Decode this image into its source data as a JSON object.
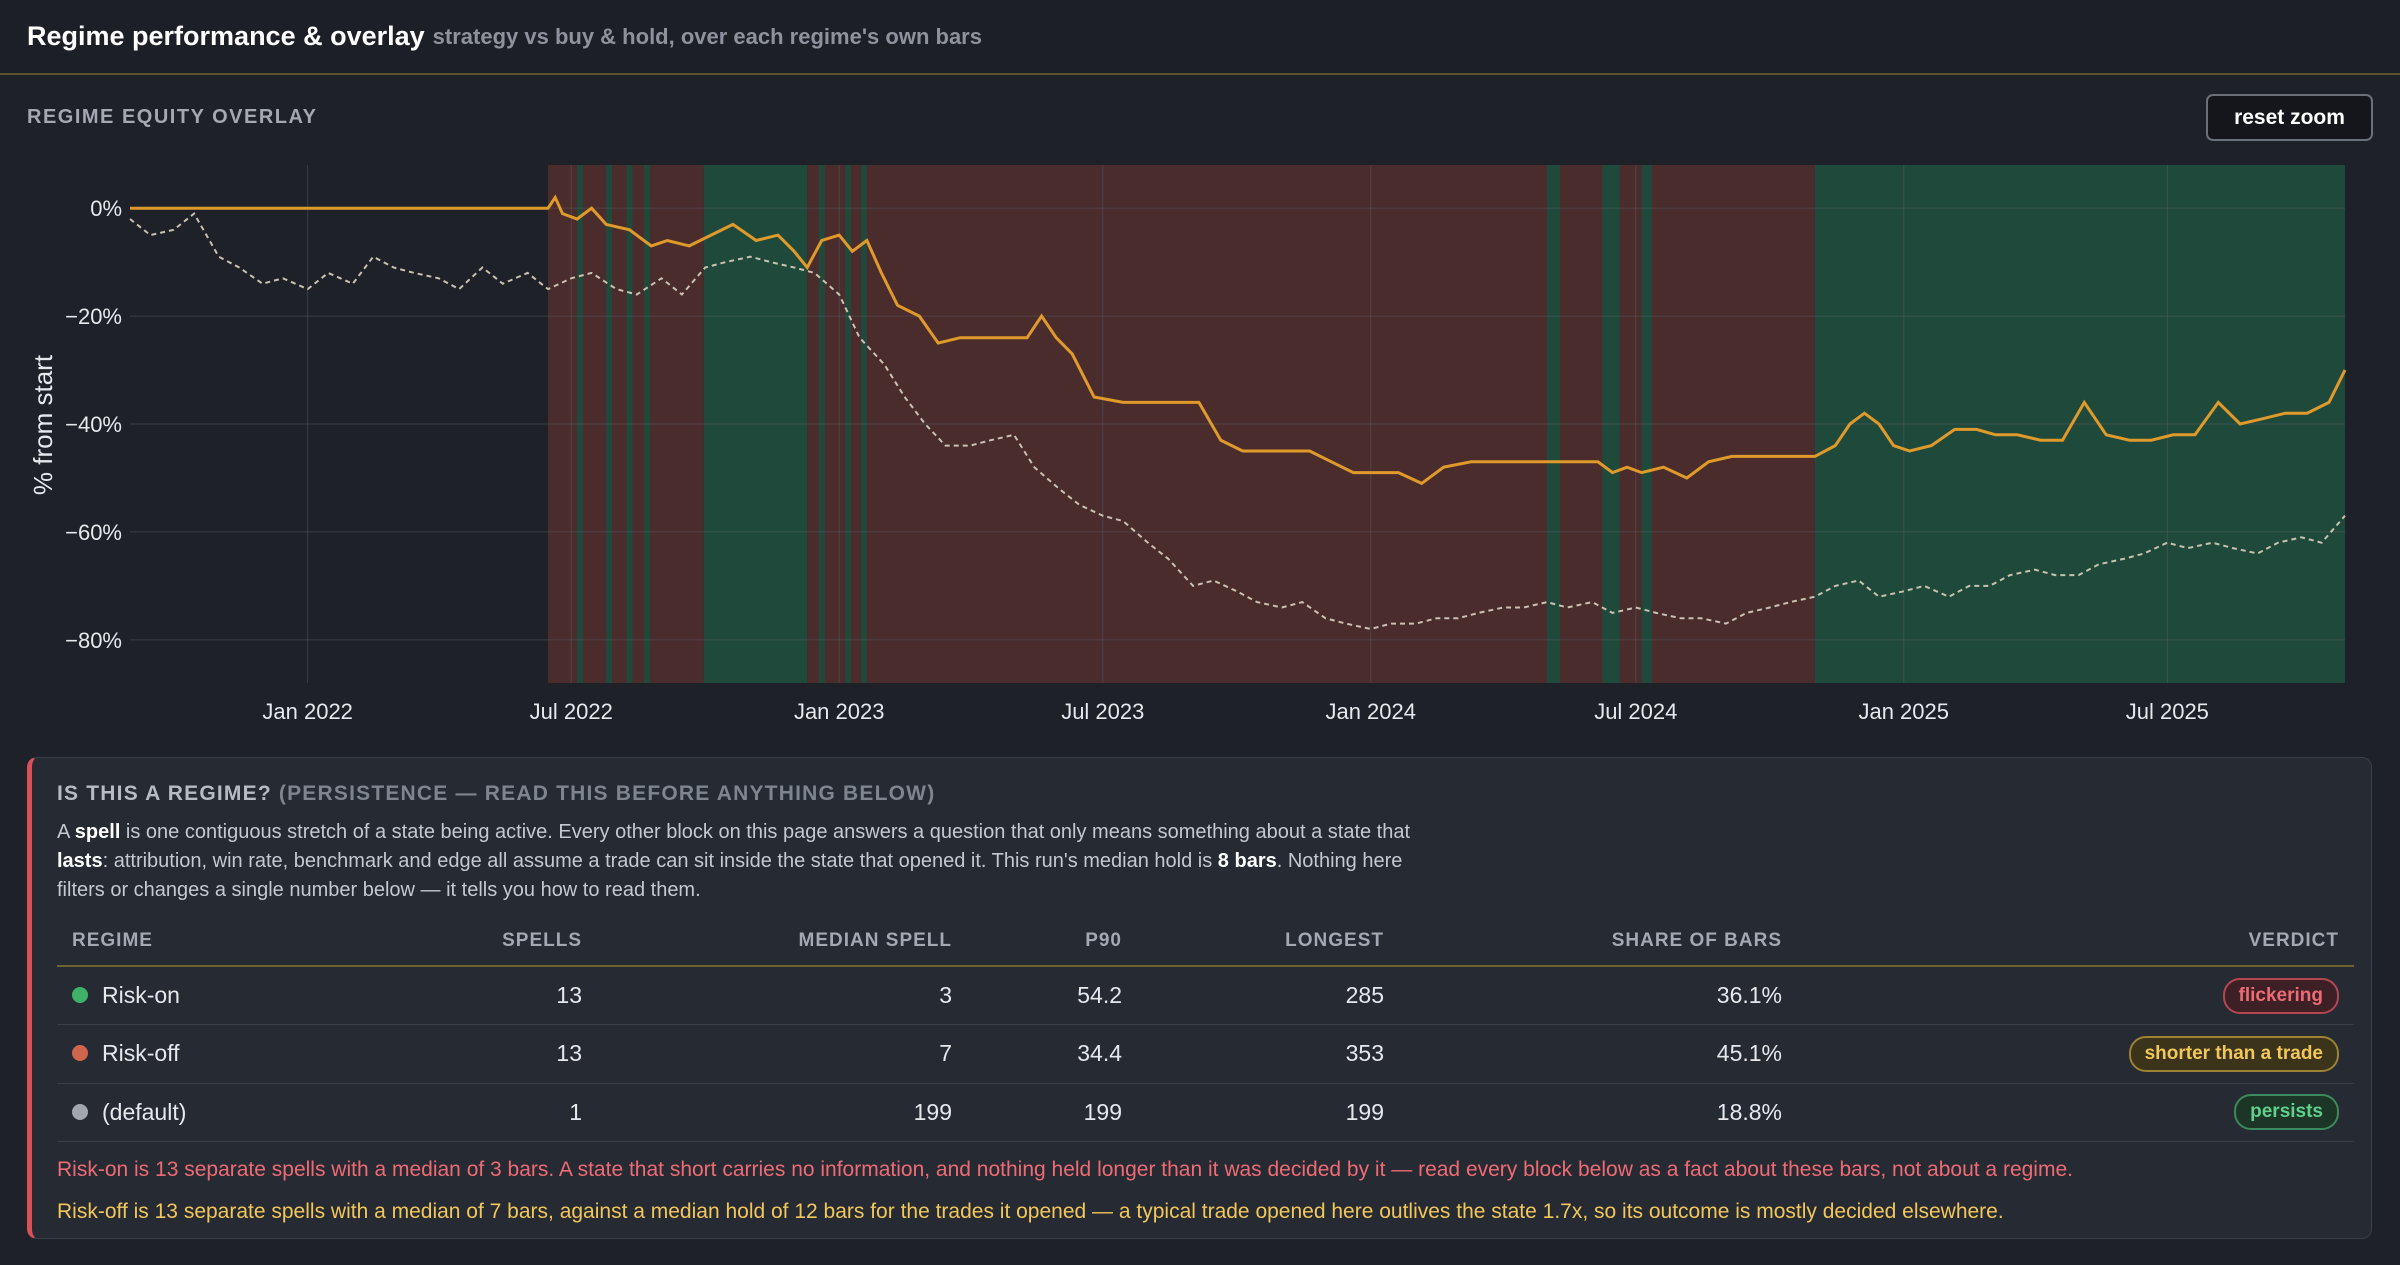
{
  "header": {
    "title": "Regime performance & overlay",
    "subtitle": "strategy vs buy & hold, over each regime's own bars"
  },
  "overlay": {
    "section_label": "REGIME EQUITY OVERLAY",
    "reset_label": "reset zoom"
  },
  "chart_data": {
    "type": "line",
    "ylabel": "% from start",
    "xlim": [
      "2021-09-01",
      "2025-10-31"
    ],
    "ylim": [
      -88,
      8
    ],
    "y_ticks": [
      {
        "value": 0,
        "label": "0%"
      },
      {
        "value": -20,
        "label": "−20%"
      },
      {
        "value": -40,
        "label": "−40%"
      },
      {
        "value": -60,
        "label": "−60%"
      },
      {
        "value": -80,
        "label": "−80%"
      }
    ],
    "x_ticks": [
      {
        "value": "2022-01-01",
        "label": "Jan 2022"
      },
      {
        "value": "2022-07-01",
        "label": "Jul 2022"
      },
      {
        "value": "2023-01-01",
        "label": "Jan 2023"
      },
      {
        "value": "2023-07-01",
        "label": "Jul 2023"
      },
      {
        "value": "2024-01-01",
        "label": "Jan 2024"
      },
      {
        "value": "2024-07-01",
        "label": "Jul 2024"
      },
      {
        "value": "2025-01-01",
        "label": "Jan 2025"
      },
      {
        "value": "2025-07-01",
        "label": "Jul 2025"
      }
    ],
    "grid": true,
    "colors": {
      "strategy": "#e09a2b",
      "buy_hold": "#c9c2b0",
      "risk_on": "#1f4a3b",
      "risk_off": "#4a2c2c"
    },
    "regime_bands": [
      {
        "regime": "Risk-off",
        "start": "2022-06-15",
        "end": "2022-09-30"
      },
      {
        "regime": "Risk-on",
        "start": "2022-07-05",
        "end": "2022-07-09"
      },
      {
        "regime": "Risk-on",
        "start": "2022-07-25",
        "end": "2022-07-29"
      },
      {
        "regime": "Risk-on",
        "start": "2022-08-08",
        "end": "2022-08-12"
      },
      {
        "regime": "Risk-on",
        "start": "2022-08-20",
        "end": "2022-08-24"
      },
      {
        "regime": "Risk-on",
        "start": "2022-09-30",
        "end": "2022-12-10"
      },
      {
        "regime": "Risk-off",
        "start": "2022-12-10",
        "end": "2024-11-01"
      },
      {
        "regime": "Risk-on",
        "start": "2022-12-18",
        "end": "2022-12-22"
      },
      {
        "regime": "Risk-on",
        "start": "2023-01-05",
        "end": "2023-01-09"
      },
      {
        "regime": "Risk-on",
        "start": "2023-01-16",
        "end": "2023-01-20"
      },
      {
        "regime": "Risk-on",
        "start": "2024-05-01",
        "end": "2024-05-10"
      },
      {
        "regime": "Risk-on",
        "start": "2024-06-08",
        "end": "2024-06-20"
      },
      {
        "regime": "Risk-on",
        "start": "2024-07-05",
        "end": "2024-07-12"
      },
      {
        "regime": "Risk-on",
        "start": "2024-11-01",
        "end": "2025-10-31"
      }
    ],
    "series": [
      {
        "key": "strategy",
        "x": [
          "2021-09-01",
          "2022-06-15",
          "2022-06-20",
          "2022-06-25",
          "2022-07-05",
          "2022-07-15",
          "2022-07-25",
          "2022-08-10",
          "2022-08-25",
          "2022-09-05",
          "2022-09-20",
          "2022-10-05",
          "2022-10-20",
          "2022-11-05",
          "2022-11-20",
          "2022-12-01",
          "2022-12-10",
          "2022-12-20",
          "2023-01-01",
          "2023-01-10",
          "2023-01-20",
          "2023-01-30",
          "2023-02-10",
          "2023-02-25",
          "2023-03-10",
          "2023-03-25",
          "2023-04-10",
          "2023-04-25",
          "2023-05-10",
          "2023-05-20",
          "2023-05-30",
          "2023-06-10",
          "2023-06-25",
          "2023-07-15",
          "2023-08-01",
          "2023-08-20",
          "2023-09-05",
          "2023-09-20",
          "2023-10-05",
          "2023-10-20",
          "2023-11-05",
          "2023-11-20",
          "2023-12-05",
          "2023-12-20",
          "2024-01-05",
          "2024-01-20",
          "2024-02-05",
          "2024-02-20",
          "2024-03-10",
          "2024-04-01",
          "2024-04-20",
          "2024-05-05",
          "2024-05-20",
          "2024-06-05",
          "2024-06-15",
          "2024-06-25",
          "2024-07-05",
          "2024-07-20",
          "2024-08-05",
          "2024-08-20",
          "2024-09-05",
          "2024-09-20",
          "2024-10-05",
          "2024-10-20",
          "2024-11-01",
          "2024-11-15",
          "2024-11-25",
          "2024-12-05",
          "2024-12-15",
          "2024-12-25",
          "2025-01-05",
          "2025-01-20",
          "2025-02-05",
          "2025-02-20",
          "2025-03-05",
          "2025-03-20",
          "2025-04-05",
          "2025-04-20",
          "2025-05-05",
          "2025-05-20",
          "2025-06-05",
          "2025-06-20",
          "2025-07-05",
          "2025-07-20",
          "2025-08-05",
          "2025-08-20",
          "2025-09-05",
          "2025-09-20",
          "2025-10-05",
          "2025-10-20",
          "2025-10-31"
        ],
        "y": [
          0,
          0,
          2,
          -1,
          -2,
          0,
          -3,
          -4,
          -7,
          -6,
          -7,
          -5,
          -3,
          -6,
          -5,
          -8,
          -11,
          -6,
          -5,
          -8,
          -6,
          -12,
          -18,
          -20,
          -25,
          -24,
          -24,
          -24,
          -24,
          -20,
          -24,
          -27,
          -35,
          -36,
          -36,
          -36,
          -36,
          -43,
          -45,
          -45,
          -45,
          -45,
          -47,
          -49,
          -49,
          -49,
          -51,
          -48,
          -47,
          -47,
          -47,
          -47,
          -47,
          -47,
          -49,
          -48,
          -49,
          -48,
          -50,
          -47,
          -46,
          -46,
          -46,
          -46,
          -46,
          -44,
          -40,
          -38,
          -40,
          -44,
          -45,
          -44,
          -41,
          -41,
          -42,
          -42,
          -43,
          -43,
          -36,
          -42,
          -43,
          -43,
          -42,
          -42,
          -36,
          -40,
          -39,
          -38,
          -38,
          -36,
          -30
        ]
      },
      {
        "key": "buy_hold",
        "x": [
          "2021-09-01",
          "2021-09-15",
          "2021-10-01",
          "2021-10-15",
          "2021-11-01",
          "2021-11-15",
          "2021-12-01",
          "2021-12-15",
          "2022-01-01",
          "2022-01-15",
          "2022-02-01",
          "2022-02-15",
          "2022-03-01",
          "2022-03-15",
          "2022-04-01",
          "2022-04-15",
          "2022-05-01",
          "2022-05-15",
          "2022-06-01",
          "2022-06-15",
          "2022-07-01",
          "2022-07-15",
          "2022-08-01",
          "2022-08-15",
          "2022-09-01",
          "2022-09-15",
          "2022-10-01",
          "2022-10-15",
          "2022-11-01",
          "2022-11-15",
          "2022-12-01",
          "2022-12-15",
          "2023-01-01",
          "2023-01-15",
          "2023-02-01",
          "2023-02-15",
          "2023-03-01",
          "2023-03-15",
          "2023-04-01",
          "2023-04-15",
          "2023-05-01",
          "2023-05-15",
          "2023-06-01",
          "2023-06-15",
          "2023-07-01",
          "2023-07-15",
          "2023-08-01",
          "2023-08-15",
          "2023-09-01",
          "2023-09-15",
          "2023-10-01",
          "2023-10-15",
          "2023-11-01",
          "2023-11-15",
          "2023-12-01",
          "2023-12-15",
          "2024-01-01",
          "2024-01-15",
          "2024-02-01",
          "2024-02-15",
          "2024-03-01",
          "2024-03-15",
          "2024-04-01",
          "2024-04-15",
          "2024-05-01",
          "2024-05-15",
          "2024-06-01",
          "2024-06-15",
          "2024-07-01",
          "2024-07-15",
          "2024-08-01",
          "2024-08-15",
          "2024-09-01",
          "2024-09-15",
          "2024-10-01",
          "2024-10-15",
          "2024-11-01",
          "2024-11-15",
          "2024-12-01",
          "2024-12-15",
          "2025-01-01",
          "2025-01-15",
          "2025-02-01",
          "2025-02-15",
          "2025-03-01",
          "2025-03-15",
          "2025-04-01",
          "2025-04-15",
          "2025-05-01",
          "2025-05-15",
          "2025-06-01",
          "2025-06-15",
          "2025-07-01",
          "2025-07-15",
          "2025-08-01",
          "2025-08-15",
          "2025-09-01",
          "2025-09-15",
          "2025-10-01",
          "2025-10-15",
          "2025-10-31"
        ],
        "y": [
          -2,
          -5,
          -4,
          -1,
          -9,
          -11,
          -14,
          -13,
          -15,
          -12,
          -14,
          -9,
          -11,
          -12,
          -13,
          -15,
          -11,
          -14,
          -12,
          -15,
          -13,
          -12,
          -15,
          -16,
          -13,
          -16,
          -11,
          -10,
          -9,
          -10,
          -11,
          -12,
          -16,
          -24,
          -29,
          -35,
          -40,
          -44,
          -44,
          -43,
          -42,
          -48,
          -52,
          -55,
          -57,
          -58,
          -62,
          -65,
          -70,
          -69,
          -71,
          -73,
          -74,
          -73,
          -76,
          -77,
          -78,
          -77,
          -77,
          -76,
          -76,
          -75,
          -74,
          -74,
          -73,
          -74,
          -73,
          -75,
          -74,
          -75,
          -76,
          -76,
          -77,
          -75,
          -74,
          -73,
          -72,
          -70,
          -69,
          -72,
          -71,
          -70,
          -72,
          -70,
          -70,
          -68,
          -67,
          -68,
          -68,
          -66,
          -65,
          -64,
          -62,
          -63,
          -62,
          -63,
          -64,
          -62,
          -61,
          -62,
          -57
        ]
      }
    ]
  },
  "persistence": {
    "heading": "IS THIS A REGIME?",
    "heading_sub": "(PERSISTENCE — READ THIS BEFORE ANYTHING BELOW)",
    "intro": {
      "p1": "A ",
      "b1": "spell",
      "p2": " is one contiguous stretch of a state being active. Every other block on this page answers a question that only means something about a state that ",
      "b2": "lasts",
      "p3": ": attribution, win rate, benchmark and edge all assume a trade can sit inside the state that opened it. This run's median hold is ",
      "b3": "8 bars",
      "p4": ". Nothing here filters or changes a single number below — it tells you how to read them."
    },
    "columns": [
      "REGIME",
      "SPELLS",
      "MEDIAN SPELL",
      "P90",
      "LONGEST",
      "SHARE OF BARS",
      "VERDICT"
    ],
    "rows": [
      {
        "regime": "Risk-on",
        "color": "#3fb168",
        "spells": "13",
        "median": "3",
        "p90": "54.2",
        "longest": "285",
        "share": "36.1%",
        "verdict": "flickering",
        "verdict_tone": "red"
      },
      {
        "regime": "Risk-off",
        "color": "#d0654e",
        "spells": "13",
        "median": "7",
        "p90": "34.4",
        "longest": "353",
        "share": "45.1%",
        "verdict": "shorter than a trade",
        "verdict_tone": "amber"
      },
      {
        "regime": "(default)",
        "color": "#a2a6ae",
        "spells": "1",
        "median": "199",
        "p90": "199",
        "longest": "199",
        "share": "18.8%",
        "verdict": "persists",
        "verdict_tone": "green"
      }
    ],
    "note_1": "Risk-on is 13 separate spells with a median of 3 bars. A state that short carries no information, and nothing held longer than it was decided by it — read every block below as a fact about these bars, not about a regime.",
    "note_2": "Risk-off is 13 separate spells with a median of 7 bars, against a median hold of 12 bars for the trades it opened — a typical trade opened here outlives the state 1.7x, so its outcome is mostly decided elsewhere."
  }
}
